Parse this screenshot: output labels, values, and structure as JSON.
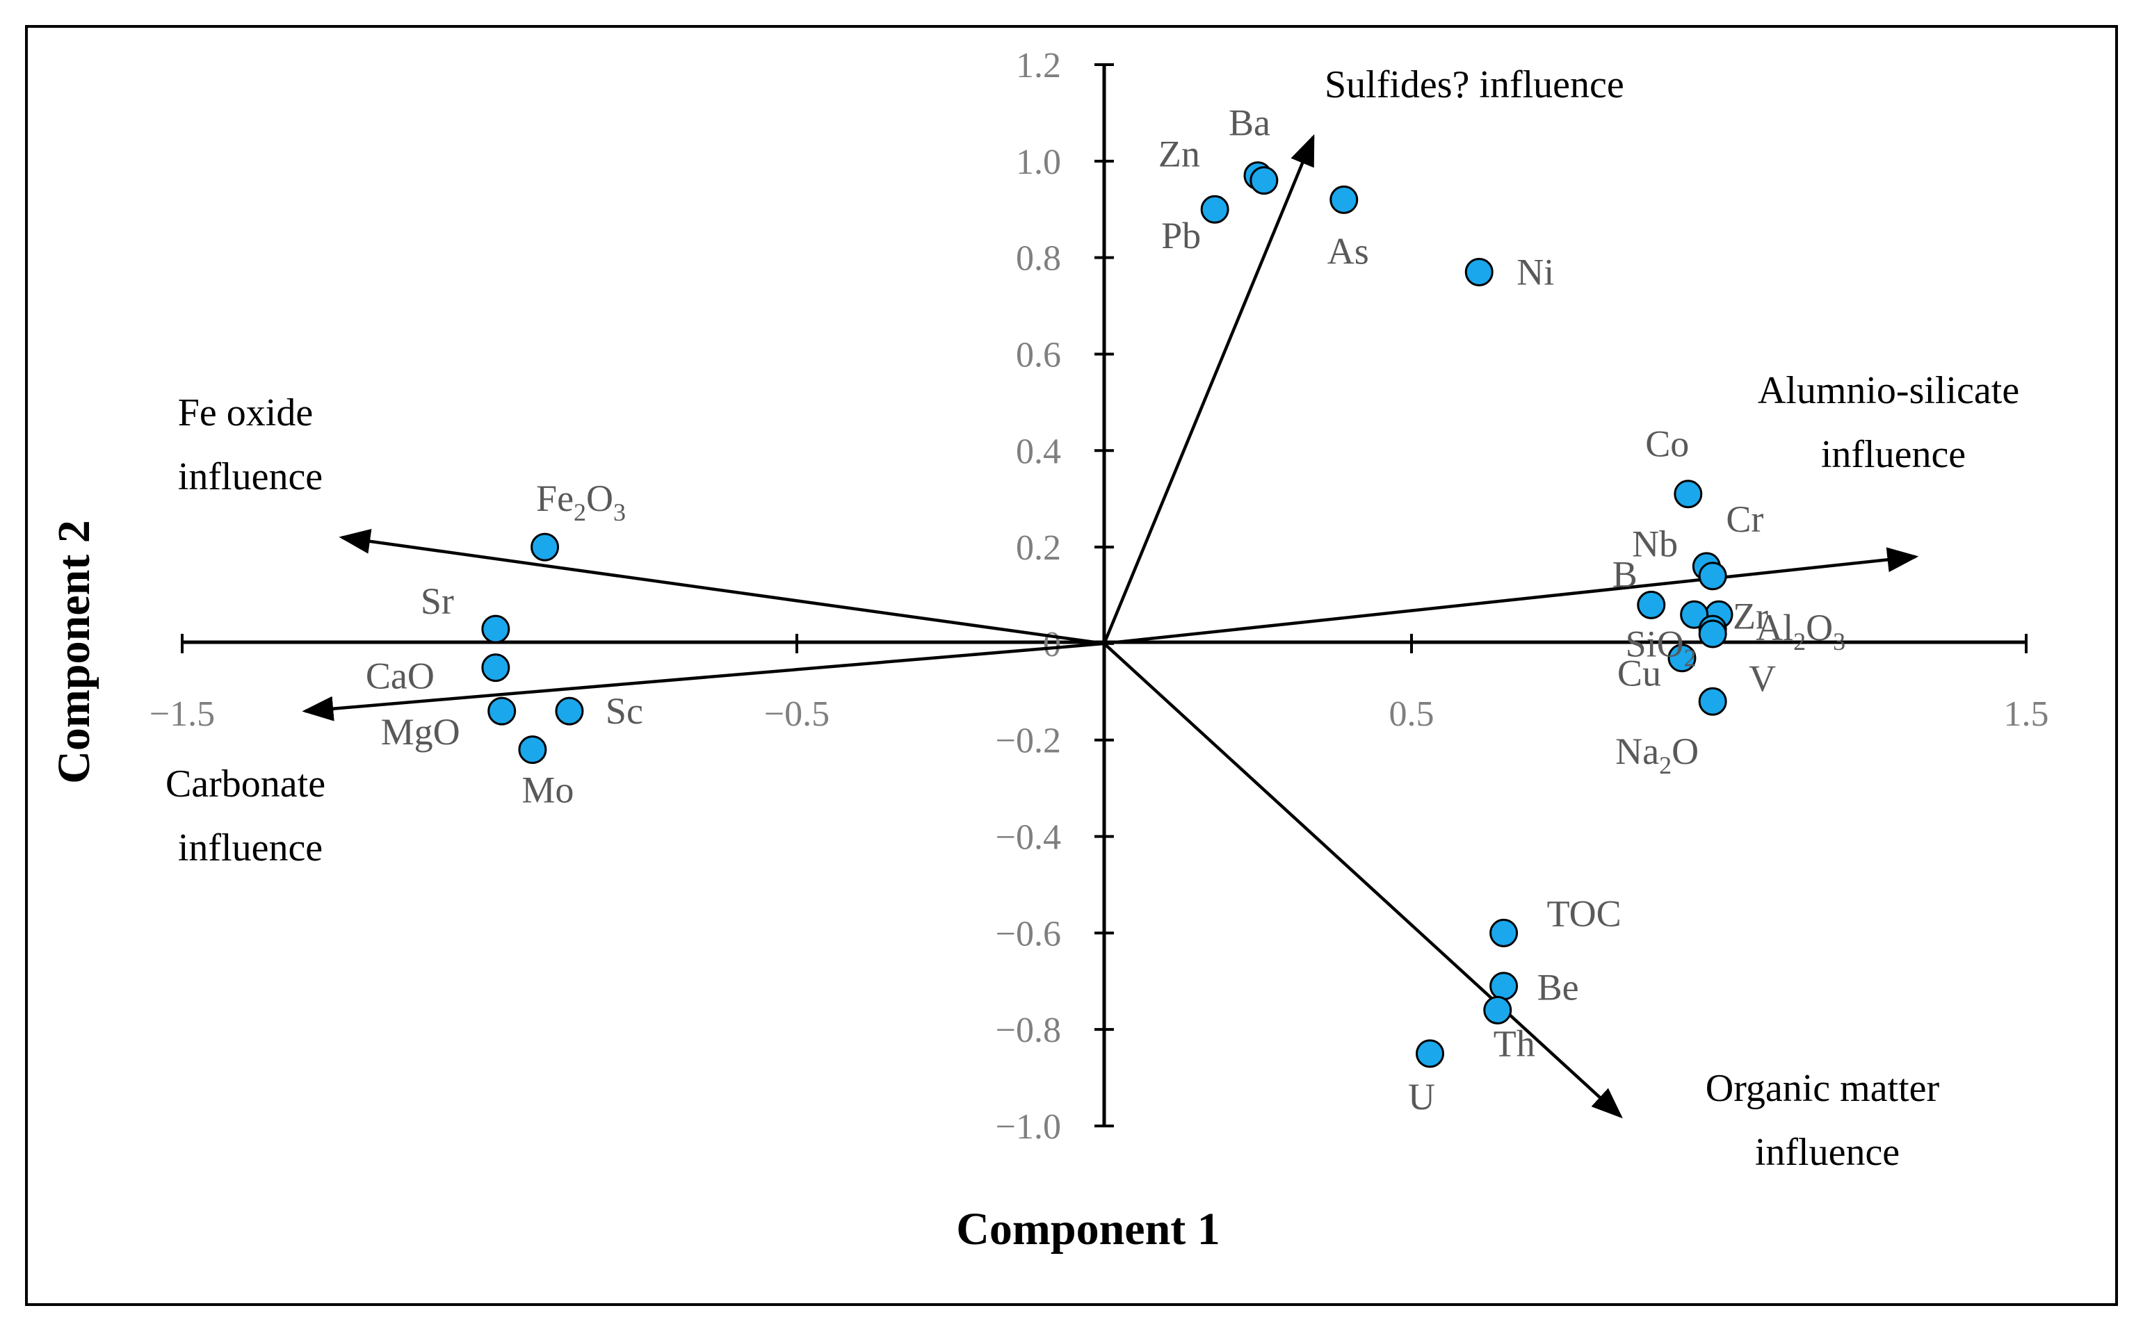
{
  "chart_data": {
    "type": "scatter",
    "title": "",
    "xlabel": "Component 1",
    "ylabel": "Component 2",
    "xlim": [
      -1.5,
      1.5
    ],
    "ylim": [
      -1.0,
      1.2
    ],
    "grid": false,
    "x_ticks": [
      {
        "value": -1.5,
        "label": "−1.5"
      },
      {
        "value": -0.5,
        "label": "−0.5"
      },
      {
        "value": 0.5,
        "label": "0.5"
      },
      {
        "value": 1.5,
        "label": "1.5"
      }
    ],
    "y_ticks": [
      {
        "value": 1.2,
        "label": "1.2"
      },
      {
        "value": 1.0,
        "label": "1.0"
      },
      {
        "value": 0.8,
        "label": "0.8"
      },
      {
        "value": 0.6,
        "label": "0.6"
      },
      {
        "value": 0.4,
        "label": "0.4"
      },
      {
        "value": 0.2,
        "label": "0.2"
      },
      {
        "value": 0.0,
        "label": "0"
      },
      {
        "value": -0.2,
        "label": "−0.2"
      },
      {
        "value": -0.4,
        "label": "−0.4"
      },
      {
        "value": -0.6,
        "label": "−0.6"
      },
      {
        "value": -0.8,
        "label": "−0.8"
      },
      {
        "value": -1.0,
        "label": "−1.0"
      }
    ],
    "point_color": "#1aa7ec",
    "points": [
      {
        "label": "Ba",
        "x": 0.25,
        "y": 0.97
      },
      {
        "label": "Zn",
        "x": 0.26,
        "y": 0.96
      },
      {
        "label": "Pb",
        "x": 0.18,
        "y": 0.9
      },
      {
        "label": "As",
        "x": 0.39,
        "y": 0.92
      },
      {
        "label": "Ni",
        "x": 0.61,
        "y": 0.77
      },
      {
        "label": "Co",
        "x": 0.95,
        "y": 0.31
      },
      {
        "label": "Cr",
        "x": 0.98,
        "y": 0.16
      },
      {
        "label": "Nb",
        "x": 0.99,
        "y": 0.14
      },
      {
        "label": "Zr",
        "x": 1.0,
        "y": 0.06
      },
      {
        "label": "B",
        "x": 0.89,
        "y": 0.08
      },
      {
        "label": "SiO2",
        "x": 0.96,
        "y": 0.06
      },
      {
        "label": "Al2O3",
        "x": 0.99,
        "y": 0.03
      },
      {
        "label": "Cu",
        "x": 0.94,
        "y": -0.03
      },
      {
        "label": "V",
        "x": 0.99,
        "y": 0.02
      },
      {
        "label": "Na2O",
        "x": 0.99,
        "y": -0.12
      },
      {
        "label": "Fe2O3",
        "x": -0.91,
        "y": 0.2
      },
      {
        "label": "Sr",
        "x": -0.99,
        "y": 0.03
      },
      {
        "label": "CaO",
        "x": -0.99,
        "y": -0.05
      },
      {
        "label": "MgO",
        "x": -0.98,
        "y": -0.14
      },
      {
        "label": "Sc",
        "x": -0.87,
        "y": -0.14
      },
      {
        "label": "Mo",
        "x": -0.93,
        "y": -0.22
      },
      {
        "label": "TOC",
        "x": 0.65,
        "y": -0.6
      },
      {
        "label": "Be",
        "x": 0.65,
        "y": -0.71
      },
      {
        "label": "Th",
        "x": 0.64,
        "y": -0.76
      },
      {
        "label": "U",
        "x": 0.53,
        "y": -0.85
      }
    ],
    "influence_vectors": [
      {
        "name": "Sulfides? influence",
        "x": 0.34,
        "y": 1.05
      },
      {
        "name": "Fe oxide influence",
        "x": -1.24,
        "y": 0.22
      },
      {
        "name": "Carbonate influence",
        "x": -1.3,
        "y": -0.14
      },
      {
        "name": "Alumnio-silicate influence",
        "x": 1.32,
        "y": 0.18
      },
      {
        "name": "Organic matter influence",
        "x": 0.84,
        "y": -0.98
      }
    ],
    "annotations": [
      {
        "lines": [
          "Sulfides? influence"
        ],
        "anchor": "start"
      },
      {
        "lines": [
          "Fe oxide",
          "influence"
        ],
        "anchor": "middle"
      },
      {
        "lines": [
          "Carbonate",
          "influence"
        ],
        "anchor": "middle"
      },
      {
        "lines": [
          "Alumnio-silicate",
          "influence"
        ],
        "anchor": "middle"
      },
      {
        "lines": [
          "Organic matter",
          "influence"
        ],
        "anchor": "middle"
      }
    ]
  }
}
